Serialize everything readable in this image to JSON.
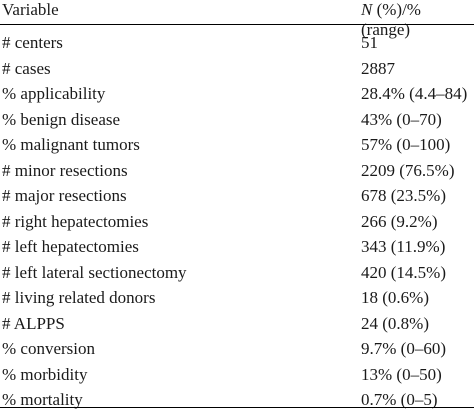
{
  "table": {
    "header": {
      "variable": "Variable",
      "value_italic": "N",
      "value_rest": " (%)/% (range)"
    },
    "rows": [
      {
        "variable": "# centers",
        "value": "51"
      },
      {
        "variable": "# cases",
        "value": "2887"
      },
      {
        "variable": "% applicability",
        "value": "28.4% (4.4–84)"
      },
      {
        "variable": "% benign disease",
        "value": "43% (0–70)"
      },
      {
        "variable": "% malignant tumors",
        "value": "57% (0–100)"
      },
      {
        "variable": "# minor resections",
        "value": "2209 (76.5%)"
      },
      {
        "variable": "# major resections",
        "value": "678 (23.5%)"
      },
      {
        "variable": "# right hepatectomies",
        "value": "266 (9.2%)"
      },
      {
        "variable": "# left hepatectomies",
        "value": "343 (11.9%)"
      },
      {
        "variable": "# left lateral sectionectomy",
        "value": "420 (14.5%)"
      },
      {
        "variable": "# living related donors",
        "value": "18 (0.6%)"
      },
      {
        "variable": "# ALPPS",
        "value": "24 (0.8%)"
      },
      {
        "variable": "% conversion",
        "value": "9.7% (0–60)"
      },
      {
        "variable": "% morbidity",
        "value": "13% (0–50)"
      },
      {
        "variable": "% mortality",
        "value": "0.7% (0–5)"
      }
    ]
  }
}
